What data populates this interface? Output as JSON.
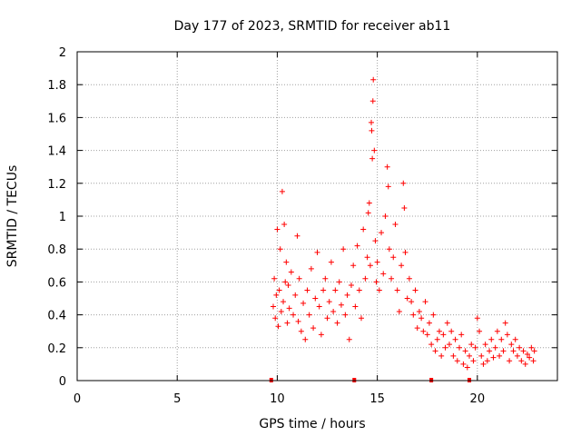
{
  "chart_data": {
    "type": "scatter",
    "title": "Day 177 of 2023, SRMTID for receiver ab11",
    "xlabel": "GPS time / hours",
    "ylabel": "SRMTID / TECUs",
    "xlim": [
      0,
      24
    ],
    "ylim": [
      0,
      2
    ],
    "x_ticks": [
      "0",
      "5",
      "10",
      "15",
      "20"
    ],
    "y_ticks": [
      "0",
      "0.2",
      "0.4",
      "0.6",
      "0.8",
      "1",
      "1.2",
      "1.4",
      "1.6",
      "1.8",
      "2"
    ],
    "grid": true,
    "marker": "+",
    "color": "#ff0000",
    "series": [
      {
        "name": "SRMTID",
        "points": [
          [
            9.8,
            0.45
          ],
          [
            9.85,
            0.62
          ],
          [
            9.9,
            0.38
          ],
          [
            9.95,
            0.52
          ],
          [
            10.0,
            0.92
          ],
          [
            10.05,
            0.33
          ],
          [
            10.1,
            0.55
          ],
          [
            10.15,
            0.8
          ],
          [
            10.2,
            0.42
          ],
          [
            10.25,
            1.15
          ],
          [
            10.3,
            0.48
          ],
          [
            10.35,
            0.95
          ],
          [
            10.4,
            0.6
          ],
          [
            10.45,
            0.72
          ],
          [
            10.5,
            0.35
          ],
          [
            10.55,
            0.58
          ],
          [
            10.6,
            0.44
          ],
          [
            10.7,
            0.66
          ],
          [
            10.8,
            0.4
          ],
          [
            10.9,
            0.52
          ],
          [
            11.0,
            0.88
          ],
          [
            11.05,
            0.36
          ],
          [
            11.1,
            0.62
          ],
          [
            11.2,
            0.3
          ],
          [
            11.3,
            0.47
          ],
          [
            11.4,
            0.25
          ],
          [
            11.5,
            0.55
          ],
          [
            11.6,
            0.4
          ],
          [
            11.7,
            0.68
          ],
          [
            11.8,
            0.32
          ],
          [
            11.9,
            0.5
          ],
          [
            12.0,
            0.78
          ],
          [
            12.1,
            0.45
          ],
          [
            12.2,
            0.28
          ],
          [
            12.3,
            0.55
          ],
          [
            12.4,
            0.62
          ],
          [
            12.5,
            0.38
          ],
          [
            12.6,
            0.48
          ],
          [
            12.7,
            0.72
          ],
          [
            12.8,
            0.42
          ],
          [
            12.9,
            0.55
          ],
          [
            13.0,
            0.35
          ],
          [
            13.1,
            0.6
          ],
          [
            13.2,
            0.46
          ],
          [
            13.3,
            0.8
          ],
          [
            13.4,
            0.4
          ],
          [
            13.5,
            0.52
          ],
          [
            13.6,
            0.25
          ],
          [
            13.7,
            0.58
          ],
          [
            13.8,
            0.7
          ],
          [
            13.9,
            0.45
          ],
          [
            14.0,
            0.82
          ],
          [
            14.1,
            0.55
          ],
          [
            14.2,
            0.38
          ],
          [
            14.3,
            0.92
          ],
          [
            14.4,
            0.62
          ],
          [
            14.5,
            0.75
          ],
          [
            14.55,
            1.02
          ],
          [
            14.6,
            1.08
          ],
          [
            14.65,
            0.7
          ],
          [
            14.7,
            1.57
          ],
          [
            14.72,
            1.52
          ],
          [
            14.75,
            1.35
          ],
          [
            14.78,
            1.7
          ],
          [
            14.8,
            1.83
          ],
          [
            14.85,
            1.4
          ],
          [
            14.9,
            0.85
          ],
          [
            14.95,
            0.6
          ],
          [
            15.0,
            0.72
          ],
          [
            15.1,
            0.55
          ],
          [
            15.2,
            0.9
          ],
          [
            15.3,
            0.65
          ],
          [
            15.4,
            1.0
          ],
          [
            15.5,
            1.3
          ],
          [
            15.55,
            1.18
          ],
          [
            15.6,
            0.8
          ],
          [
            15.7,
            0.62
          ],
          [
            15.8,
            0.75
          ],
          [
            15.9,
            0.95
          ],
          [
            16.0,
            0.55
          ],
          [
            16.1,
            0.42
          ],
          [
            16.2,
            0.7
          ],
          [
            16.3,
            1.2
          ],
          [
            16.35,
            1.05
          ],
          [
            16.4,
            0.78
          ],
          [
            16.5,
            0.5
          ],
          [
            16.6,
            0.62
          ],
          [
            16.7,
            0.48
          ],
          [
            16.8,
            0.4
          ],
          [
            16.9,
            0.55
          ],
          [
            17.0,
            0.32
          ],
          [
            17.1,
            0.42
          ],
          [
            17.2,
            0.38
          ],
          [
            17.3,
            0.3
          ],
          [
            17.4,
            0.48
          ],
          [
            17.5,
            0.28
          ],
          [
            17.6,
            0.35
          ],
          [
            17.7,
            0.22
          ],
          [
            17.8,
            0.4
          ],
          [
            17.9,
            0.18
          ],
          [
            18.0,
            0.25
          ],
          [
            18.1,
            0.3
          ],
          [
            18.2,
            0.15
          ],
          [
            18.3,
            0.28
          ],
          [
            18.4,
            0.2
          ],
          [
            18.5,
            0.35
          ],
          [
            18.6,
            0.22
          ],
          [
            18.7,
            0.3
          ],
          [
            18.8,
            0.15
          ],
          [
            18.9,
            0.25
          ],
          [
            19.0,
            0.12
          ],
          [
            19.1,
            0.2
          ],
          [
            19.2,
            0.28
          ],
          [
            19.3,
            0.1
          ],
          [
            19.4,
            0.18
          ],
          [
            19.5,
            0.08
          ],
          [
            19.6,
            0.15
          ],
          [
            19.7,
            0.22
          ],
          [
            19.8,
            0.12
          ],
          [
            19.9,
            0.2
          ],
          [
            20.0,
            0.38
          ],
          [
            20.1,
            0.3
          ],
          [
            20.2,
            0.15
          ],
          [
            20.3,
            0.1
          ],
          [
            20.4,
            0.22
          ],
          [
            20.5,
            0.12
          ],
          [
            20.6,
            0.18
          ],
          [
            20.7,
            0.25
          ],
          [
            20.8,
            0.14
          ],
          [
            20.9,
            0.2
          ],
          [
            21.0,
            0.3
          ],
          [
            21.1,
            0.15
          ],
          [
            21.2,
            0.25
          ],
          [
            21.3,
            0.18
          ],
          [
            21.4,
            0.35
          ],
          [
            21.5,
            0.28
          ],
          [
            21.6,
            0.12
          ],
          [
            21.7,
            0.22
          ],
          [
            21.8,
            0.18
          ],
          [
            21.9,
            0.25
          ],
          [
            22.0,
            0.15
          ],
          [
            22.1,
            0.2
          ],
          [
            22.2,
            0.12
          ],
          [
            22.3,
            0.18
          ],
          [
            22.4,
            0.1
          ],
          [
            22.5,
            0.16
          ],
          [
            22.6,
            0.14
          ],
          [
            22.7,
            0.2
          ],
          [
            22.8,
            0.12
          ],
          [
            22.85,
            0.18
          ]
        ]
      }
    ],
    "gap_markers_x": [
      9.7,
      13.85,
      17.7,
      19.6
    ]
  }
}
